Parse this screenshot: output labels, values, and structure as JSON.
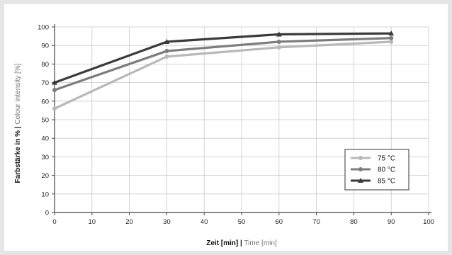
{
  "chart_data": {
    "type": "line",
    "xlabel_main": "Zeit [min] |",
    "xlabel_alt": " Time [min]",
    "ylabel_main": "Farbstärke in % |",
    "ylabel_alt": " Colour intensity [%]",
    "xlim": [
      0,
      100
    ],
    "ylim": [
      0,
      100
    ],
    "xticks": [
      "0",
      "10",
      "20",
      "30",
      "40",
      "50",
      "60",
      "70",
      "80",
      "90",
      "100"
    ],
    "yticks": [
      "0",
      "10",
      "20",
      "30",
      "40",
      "50",
      "60",
      "70",
      "80",
      "90",
      "100"
    ],
    "grid": true,
    "legend_position": "bottom-right",
    "series": [
      {
        "name": "75 °C",
        "color": "#b8b8b8",
        "marker": "circle",
        "x": [
          0,
          30,
          60,
          90
        ],
        "y": [
          56,
          84,
          89,
          92
        ]
      },
      {
        "name": "80 °C",
        "color": "#7c7c7c",
        "marker": "circle",
        "x": [
          0,
          30,
          60,
          90
        ],
        "y": [
          66,
          87,
          92,
          94
        ]
      },
      {
        "name": "85 °C",
        "color": "#3a3a3a",
        "marker": "triangle",
        "x": [
          0,
          30,
          60,
          90
        ],
        "y": [
          70,
          92,
          96,
          96.5
        ]
      }
    ]
  }
}
